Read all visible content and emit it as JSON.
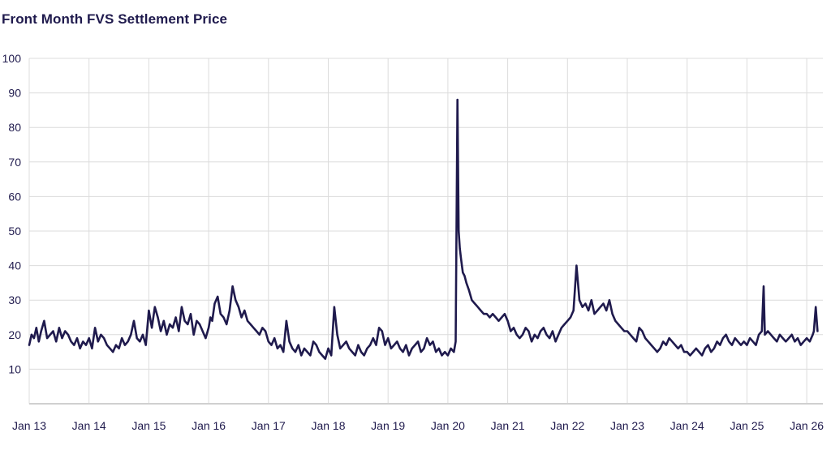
{
  "chart_data": {
    "type": "line",
    "title": "Front Month FVS Settlement Price",
    "xlabel": "",
    "ylabel": "",
    "ylim": [
      0,
      100
    ],
    "yticks": [
      10,
      20,
      30,
      40,
      50,
      60,
      70,
      80,
      90,
      100
    ],
    "xlim": [
      2013.0,
      2026.2
    ],
    "xticks": [
      {
        "label": "Jan 13",
        "value": 2013
      },
      {
        "label": "Jan 14",
        "value": 2014
      },
      {
        "label": "Jan 15",
        "value": 2015
      },
      {
        "label": "Jan 16",
        "value": 2016
      },
      {
        "label": "Jan 17",
        "value": 2017
      },
      {
        "label": "Jan 18",
        "value": 2018
      },
      {
        "label": "Jan 19",
        "value": 2019
      },
      {
        "label": "Jan 20",
        "value": 2020
      },
      {
        "label": "Jan 21",
        "value": 2021
      },
      {
        "label": "Jan 22",
        "value": 2022
      },
      {
        "label": "Jan 23",
        "value": 2023
      },
      {
        "label": "Jan 24",
        "value": 2024
      },
      {
        "label": "Jan 25",
        "value": 2025
      },
      {
        "label": "Jan 26",
        "value": 2026
      }
    ],
    "grid": true,
    "series": [
      {
        "name": "Front Month FVS Settlement Price",
        "color": "#1f1a4d",
        "x": [
          2013.0,
          2013.04,
          2013.08,
          2013.12,
          2013.16,
          2013.2,
          2013.25,
          2013.3,
          2013.35,
          2013.4,
          2013.45,
          2013.5,
          2013.55,
          2013.6,
          2013.65,
          2013.7,
          2013.75,
          2013.8,
          2013.85,
          2013.9,
          2013.95,
          2014.0,
          2014.05,
          2014.1,
          2014.15,
          2014.2,
          2014.25,
          2014.3,
          2014.35,
          2014.4,
          2014.45,
          2014.5,
          2014.55,
          2014.6,
          2014.65,
          2014.7,
          2014.75,
          2014.8,
          2014.85,
          2014.9,
          2014.95,
          2015.0,
          2015.05,
          2015.1,
          2015.15,
          2015.2,
          2015.25,
          2015.3,
          2015.35,
          2015.4,
          2015.45,
          2015.5,
          2015.55,
          2015.6,
          2015.65,
          2015.7,
          2015.75,
          2015.8,
          2015.85,
          2015.9,
          2015.95,
          2016.0,
          2016.03,
          2016.06,
          2016.1,
          2016.15,
          2016.2,
          2016.25,
          2016.3,
          2016.35,
          2016.4,
          2016.45,
          2016.5,
          2016.55,
          2016.6,
          2016.65,
          2016.7,
          2016.75,
          2016.8,
          2016.85,
          2016.9,
          2016.95,
          2017.0,
          2017.05,
          2017.1,
          2017.15,
          2017.2,
          2017.25,
          2017.3,
          2017.35,
          2017.4,
          2017.45,
          2017.5,
          2017.55,
          2017.6,
          2017.65,
          2017.7,
          2017.75,
          2017.8,
          2017.85,
          2017.9,
          2017.95,
          2018.0,
          2018.05,
          2018.1,
          2018.15,
          2018.2,
          2018.25,
          2018.3,
          2018.35,
          2018.4,
          2018.45,
          2018.5,
          2018.55,
          2018.6,
          2018.65,
          2018.7,
          2018.75,
          2018.8,
          2018.85,
          2018.9,
          2018.95,
          2019.0,
          2019.05,
          2019.1,
          2019.15,
          2019.2,
          2019.25,
          2019.3,
          2019.35,
          2019.4,
          2019.45,
          2019.5,
          2019.55,
          2019.6,
          2019.65,
          2019.7,
          2019.75,
          2019.8,
          2019.85,
          2019.9,
          2019.95,
          2020.0,
          2020.05,
          2020.1,
          2020.13,
          2020.16,
          2020.18,
          2020.2,
          2020.22,
          2020.25,
          2020.28,
          2020.31,
          2020.35,
          2020.4,
          2020.45,
          2020.5,
          2020.55,
          2020.6,
          2020.65,
          2020.7,
          2020.75,
          2020.8,
          2020.85,
          2020.9,
          2020.95,
          2021.0,
          2021.05,
          2021.1,
          2021.15,
          2021.2,
          2021.25,
          2021.3,
          2021.35,
          2021.4,
          2021.45,
          2021.5,
          2021.55,
          2021.6,
          2021.65,
          2021.7,
          2021.75,
          2021.8,
          2021.85,
          2021.9,
          2021.95,
          2022.0,
          2022.05,
          2022.1,
          2022.15,
          2022.2,
          2022.25,
          2022.3,
          2022.35,
          2022.4,
          2022.45,
          2022.5,
          2022.55,
          2022.6,
          2022.65,
          2022.7,
          2022.75,
          2022.8,
          2022.85,
          2022.9,
          2022.95,
          2023.0,
          2023.05,
          2023.1,
          2023.15,
          2023.2,
          2023.25,
          2023.3,
          2023.35,
          2023.4,
          2023.45,
          2023.5,
          2023.55,
          2023.6,
          2023.65,
          2023.7,
          2023.75,
          2023.8,
          2023.85,
          2023.9,
          2023.95,
          2024.0,
          2024.05,
          2024.1,
          2024.15,
          2024.2,
          2024.25,
          2024.3,
          2024.35,
          2024.4,
          2024.45,
          2024.5,
          2024.55,
          2024.6,
          2024.65,
          2024.7,
          2024.75,
          2024.8,
          2024.85,
          2024.9,
          2024.95,
          2025.0,
          2025.05,
          2025.1,
          2025.15,
          2025.2,
          2025.25,
          2025.28,
          2025.3,
          2025.35,
          2025.4,
          2025.45,
          2025.5,
          2025.55,
          2025.6,
          2025.65,
          2025.7,
          2025.75,
          2025.8,
          2025.85,
          2025.9,
          2025.95,
          2026.0,
          2026.05,
          2026.1,
          2026.12,
          2026.15,
          2026.18
        ],
        "values": [
          17,
          20,
          19,
          22,
          18,
          21,
          24,
          19,
          20,
          21,
          18,
          22,
          19,
          21,
          20,
          18,
          17,
          19,
          16,
          18,
          17,
          19,
          16,
          22,
          18,
          20,
          19,
          17,
          16,
          15,
          17,
          16,
          19,
          17,
          18,
          20,
          24,
          19,
          18,
          20,
          17,
          27,
          22,
          28,
          25,
          21,
          24,
          20,
          23,
          22,
          25,
          21,
          28,
          24,
          23,
          26,
          20,
          24,
          23,
          21,
          19,
          22,
          25,
          24,
          29,
          31,
          26,
          25,
          23,
          27,
          34,
          30,
          28,
          25,
          27,
          24,
          23,
          22,
          21,
          20,
          22,
          21,
          18,
          17,
          19,
          16,
          17,
          15,
          24,
          18,
          16,
          15,
          17,
          14,
          16,
          15,
          14,
          18,
          17,
          15,
          14,
          13,
          16,
          14,
          28,
          20,
          16,
          17,
          18,
          16,
          15,
          14,
          17,
          15,
          14,
          16,
          17,
          19,
          17,
          22,
          21,
          17,
          19,
          16,
          17,
          18,
          16,
          15,
          17,
          14,
          16,
          17,
          18,
          15,
          16,
          19,
          17,
          18,
          15,
          16,
          14,
          15,
          14,
          16,
          15,
          18,
          88,
          50,
          45,
          42,
          38,
          37,
          35,
          33,
          30,
          29,
          28,
          27,
          26,
          26,
          25,
          26,
          25,
          24,
          25,
          26,
          24,
          21,
          22,
          20,
          19,
          20,
          22,
          21,
          18,
          20,
          19,
          21,
          22,
          20,
          19,
          21,
          18,
          20,
          22,
          23,
          24,
          25,
          27,
          40,
          30,
          28,
          29,
          27,
          30,
          26,
          27,
          28,
          29,
          27,
          30,
          26,
          24,
          23,
          22,
          21,
          21,
          20,
          19,
          18,
          22,
          21,
          19,
          18,
          17,
          16,
          15,
          16,
          18,
          17,
          19,
          18,
          17,
          16,
          17,
          15,
          15,
          14,
          15,
          16,
          15,
          14,
          16,
          17,
          15,
          16,
          18,
          17,
          19,
          20,
          18,
          17,
          19,
          18,
          17,
          18,
          17,
          19,
          18,
          17,
          20,
          21,
          34,
          20,
          21,
          20,
          19,
          18,
          20,
          19,
          18,
          19,
          20,
          18,
          19,
          17,
          18,
          19,
          18,
          20,
          21,
          28,
          21
        ]
      }
    ]
  }
}
